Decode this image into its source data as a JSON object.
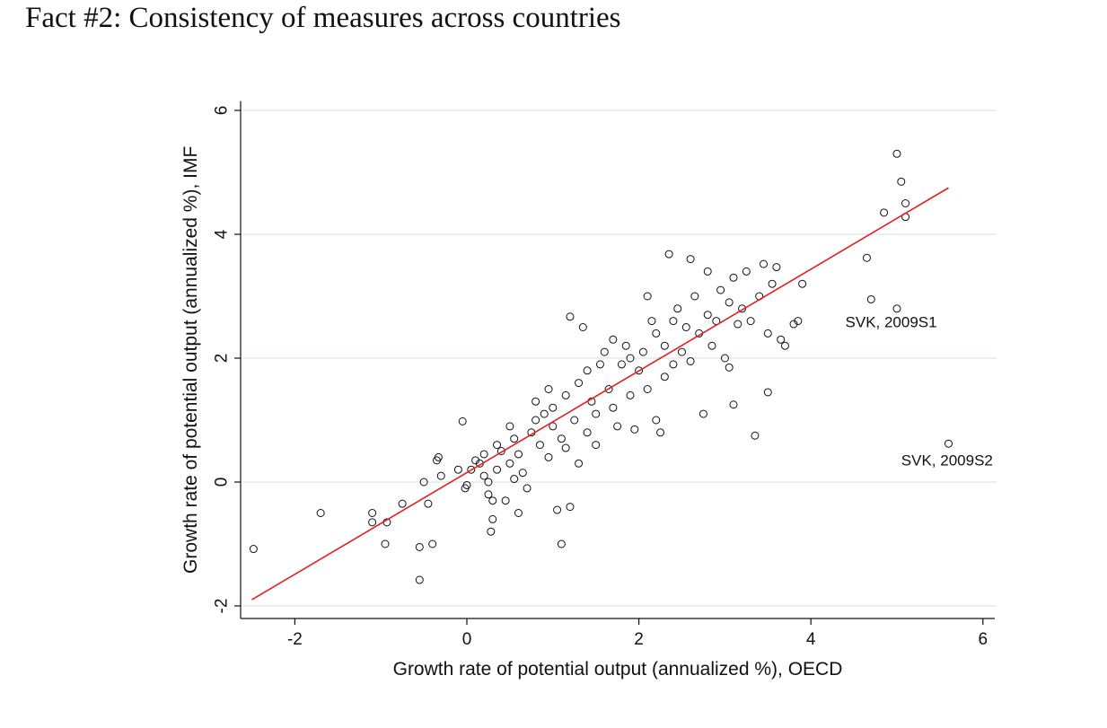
{
  "page": {
    "title": "Fact #2: Consistency of measures across countries"
  },
  "chart_data": {
    "type": "scatter",
    "title": "",
    "xlabel": "Growth rate of potential output (annualized %), OECD",
    "ylabel": "Growth rate of potential output (annualized %), IMF",
    "xlim": [
      -2.6,
      6.2
    ],
    "ylim": [
      -2.1,
      6.15
    ],
    "xticks": [
      -2,
      0,
      2,
      4,
      6
    ],
    "yticks": [
      -2,
      0,
      2,
      4,
      6
    ],
    "grid": "horizontal",
    "legend": "none",
    "colors": {
      "points": "#111111",
      "fit_line": "#e32020",
      "grid": "#e3ebec"
    },
    "fit_line": {
      "x": [
        -2.5,
        5.6
      ],
      "y": [
        -1.9,
        4.75
      ]
    },
    "annotations": [
      {
        "text": "SVK, 2009S1",
        "x": 4.4,
        "y": 2.5
      },
      {
        "text": "SVK, 2009S2",
        "x": 5.05,
        "y": 0.27
      }
    ],
    "points": [
      [
        -2.48,
        -1.08
      ],
      [
        -1.7,
        -0.5
      ],
      [
        -1.1,
        -0.5
      ],
      [
        -1.1,
        -0.65
      ],
      [
        -0.95,
        -1.0
      ],
      [
        -0.93,
        -0.65
      ],
      [
        -0.75,
        -0.35
      ],
      [
        -0.55,
        -1.05
      ],
      [
        -0.45,
        -0.35
      ],
      [
        -0.4,
        -1.0
      ],
      [
        -0.35,
        0.35
      ],
      [
        -0.3,
        0.1
      ],
      [
        -0.33,
        0.4
      ],
      [
        -0.5,
        0.0
      ],
      [
        -0.55,
        -1.58
      ],
      [
        -0.1,
        0.2
      ],
      [
        -0.05,
        0.98
      ],
      [
        -0.02,
        -0.1
      ],
      [
        0.0,
        -0.05
      ],
      [
        0.05,
        0.2
      ],
      [
        0.1,
        0.35
      ],
      [
        0.15,
        0.3
      ],
      [
        0.2,
        0.45
      ],
      [
        0.2,
        0.1
      ],
      [
        0.25,
        0.0
      ],
      [
        0.25,
        -0.2
      ],
      [
        0.3,
        -0.3
      ],
      [
        0.3,
        -0.6
      ],
      [
        0.28,
        -0.8
      ],
      [
        0.35,
        0.6
      ],
      [
        0.35,
        0.2
      ],
      [
        0.4,
        0.5
      ],
      [
        0.45,
        -0.3
      ],
      [
        0.5,
        0.3
      ],
      [
        0.5,
        0.9
      ],
      [
        0.55,
        0.7
      ],
      [
        0.55,
        0.05
      ],
      [
        0.6,
        -0.5
      ],
      [
        0.6,
        0.45
      ],
      [
        0.65,
        0.15
      ],
      [
        0.7,
        -0.1
      ],
      [
        0.75,
        0.8
      ],
      [
        0.8,
        1.0
      ],
      [
        0.8,
        1.3
      ],
      [
        0.85,
        0.6
      ],
      [
        0.9,
        1.1
      ],
      [
        0.95,
        1.5
      ],
      [
        0.95,
        0.4
      ],
      [
        1.0,
        0.9
      ],
      [
        1.0,
        1.2
      ],
      [
        1.05,
        -0.45
      ],
      [
        1.1,
        -1.0
      ],
      [
        1.1,
        0.7
      ],
      [
        1.15,
        1.4
      ],
      [
        1.15,
        0.55
      ],
      [
        1.2,
        2.67
      ],
      [
        1.2,
        -0.4
      ],
      [
        1.25,
        1.0
      ],
      [
        1.3,
        0.3
      ],
      [
        1.3,
        1.6
      ],
      [
        1.35,
        2.5
      ],
      [
        1.4,
        1.8
      ],
      [
        1.4,
        0.8
      ],
      [
        1.45,
        1.3
      ],
      [
        1.5,
        0.6
      ],
      [
        1.5,
        1.1
      ],
      [
        1.55,
        1.9
      ],
      [
        1.6,
        2.1
      ],
      [
        1.65,
        1.5
      ],
      [
        1.7,
        1.2
      ],
      [
        1.7,
        2.3
      ],
      [
        1.75,
        0.9
      ],
      [
        1.8,
        1.9
      ],
      [
        1.85,
        2.2
      ],
      [
        1.9,
        1.4
      ],
      [
        1.9,
        2.0
      ],
      [
        1.95,
        0.85
      ],
      [
        2.0,
        1.8
      ],
      [
        2.05,
        2.1
      ],
      [
        2.1,
        3.0
      ],
      [
        2.1,
        1.5
      ],
      [
        2.15,
        2.6
      ],
      [
        2.2,
        1.0
      ],
      [
        2.2,
        2.4
      ],
      [
        2.25,
        0.8
      ],
      [
        2.3,
        1.7
      ],
      [
        2.3,
        2.2
      ],
      [
        2.35,
        3.68
      ],
      [
        2.4,
        2.6
      ],
      [
        2.4,
        1.9
      ],
      [
        2.45,
        2.8
      ],
      [
        2.5,
        2.1
      ],
      [
        2.55,
        2.5
      ],
      [
        2.6,
        3.6
      ],
      [
        2.6,
        1.95
      ],
      [
        2.65,
        3.0
      ],
      [
        2.7,
        2.4
      ],
      [
        2.75,
        1.1
      ],
      [
        2.8,
        2.7
      ],
      [
        2.8,
        3.4
      ],
      [
        2.85,
        2.2
      ],
      [
        2.9,
        2.6
      ],
      [
        2.95,
        3.1
      ],
      [
        3.0,
        2.0
      ],
      [
        3.05,
        2.9
      ],
      [
        3.05,
        1.85
      ],
      [
        3.1,
        3.3
      ],
      [
        3.1,
        1.25
      ],
      [
        3.15,
        2.55
      ],
      [
        3.2,
        2.8
      ],
      [
        3.25,
        3.4
      ],
      [
        3.3,
        2.6
      ],
      [
        3.35,
        0.75
      ],
      [
        3.4,
        3.0
      ],
      [
        3.45,
        3.52
      ],
      [
        3.5,
        2.4
      ],
      [
        3.5,
        1.45
      ],
      [
        3.55,
        3.2
      ],
      [
        3.6,
        3.47
      ],
      [
        3.65,
        2.3
      ],
      [
        3.7,
        2.2
      ],
      [
        3.8,
        2.55
      ],
      [
        3.85,
        2.6
      ],
      [
        3.9,
        3.2
      ],
      [
        4.65,
        3.62
      ],
      [
        4.7,
        2.95
      ],
      [
        4.85,
        4.35
      ],
      [
        5.0,
        2.8
      ],
      [
        5.0,
        5.3
      ],
      [
        5.05,
        4.85
      ],
      [
        5.1,
        4.5
      ],
      [
        5.1,
        4.28
      ],
      [
        5.6,
        0.62
      ]
    ]
  }
}
